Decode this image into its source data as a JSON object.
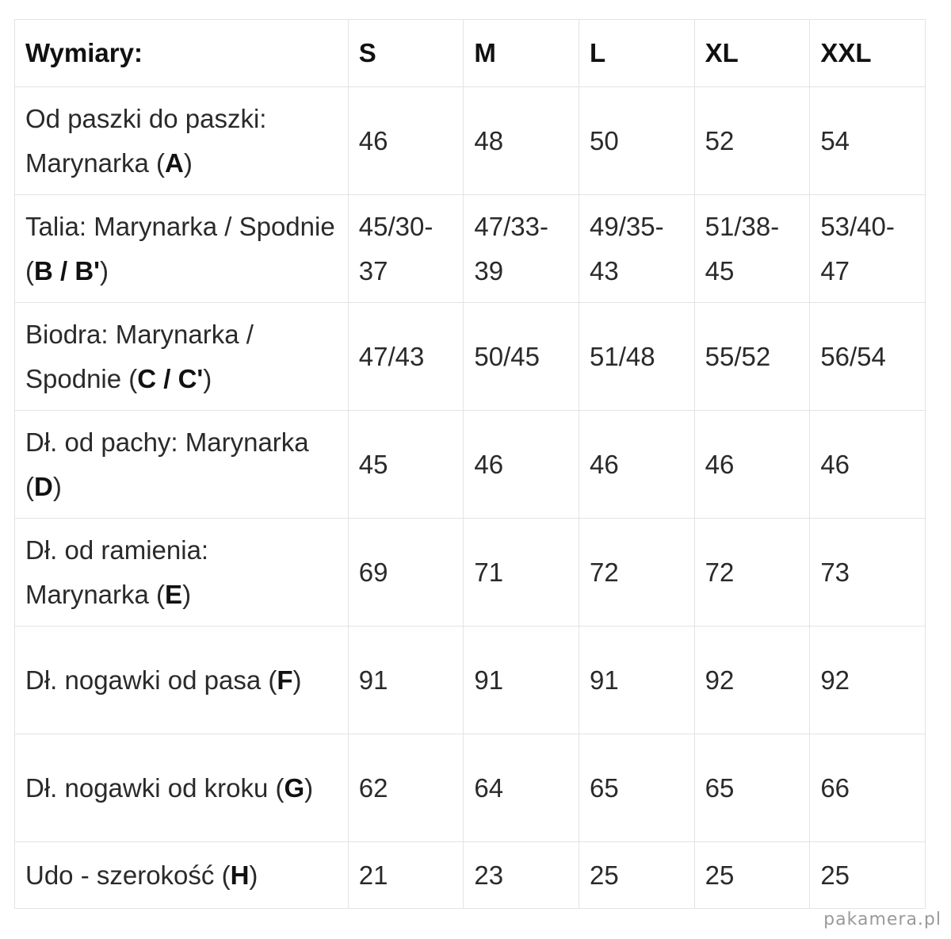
{
  "table": {
    "header": {
      "label": "Wymiary:",
      "sizes": [
        "S",
        "M",
        "L",
        "XL",
        "XXL"
      ]
    },
    "rows": [
      {
        "label_text": "Od paszki do paszki: Marynarka (",
        "code": "A",
        "label_end": ")",
        "values": [
          "46",
          "48",
          "50",
          "52",
          "54"
        ]
      },
      {
        "label_text": "Talia: Marynarka / Spodnie (",
        "code": "B / B'",
        "label_end": ")",
        "values": [
          "45/30-37",
          "47/33-39",
          "49/35-43",
          "51/38-45",
          "53/40-47"
        ]
      },
      {
        "label_text": "Biodra: Marynarka / Spodnie (",
        "code": "C / C'",
        "label_end": ")",
        "values": [
          "47/43",
          "50/45",
          "51/48",
          "55/52",
          "56/54"
        ]
      },
      {
        "label_text": "Dł. od pachy: Marynarka (",
        "code": "D",
        "label_end": ")",
        "values": [
          "45",
          "46",
          "46",
          "46",
          "46"
        ]
      },
      {
        "label_text": "Dł. od ramienia: Marynarka (",
        "code": "E",
        "label_end": ")",
        "values": [
          "69",
          "71",
          "72",
          "72",
          "73"
        ]
      },
      {
        "label_text": "Dł. nogawki od pasa (",
        "code": "F",
        "label_end": ")",
        "values": [
          "91",
          "91",
          "91",
          "92",
          "92"
        ]
      },
      {
        "label_text": "Dł. nogawki od kroku (",
        "code": "G",
        "label_end": ")",
        "values": [
          "62",
          "64",
          "65",
          "65",
          "66"
        ]
      },
      {
        "label_text": "Udo - szerokość (",
        "code": "H",
        "label_end": ")",
        "values": [
          "21",
          "23",
          "25",
          "25",
          "25"
        ]
      }
    ]
  },
  "watermark": "pakamera.pl"
}
